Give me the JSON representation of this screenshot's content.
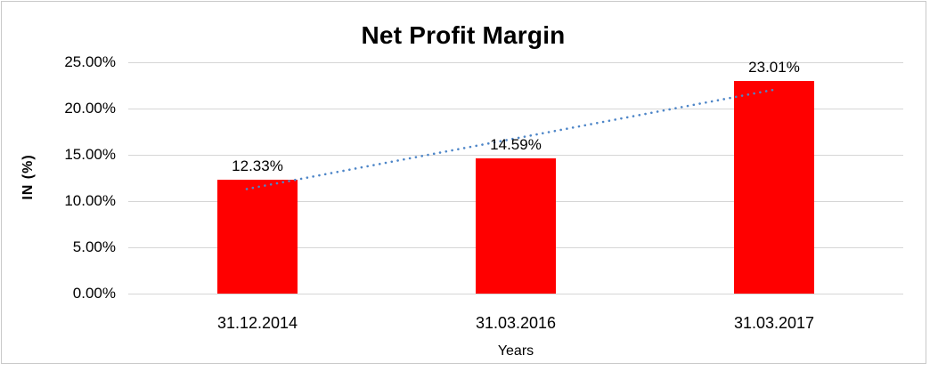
{
  "chart_data": {
    "type": "bar",
    "title": "Net Profit Margin",
    "categories": [
      "31.12.2014",
      "31.03.2016",
      "31.03.2017"
    ],
    "values": [
      12.33,
      14.59,
      23.01
    ],
    "data_labels": [
      "12.33%",
      "14.59%",
      "23.01%"
    ],
    "xlabel": "Years",
    "ylabel": "IN (%)",
    "ylim": [
      0,
      25
    ],
    "yticks": [
      {
        "value": 0,
        "label": "0.00%"
      },
      {
        "value": 5,
        "label": "5.00%"
      },
      {
        "value": 10,
        "label": "10.00%"
      },
      {
        "value": 15,
        "label": "15.00%"
      },
      {
        "value": 20,
        "label": "20.00%"
      },
      {
        "value": 25,
        "label": "25.00%"
      }
    ],
    "grid": true,
    "legend": "none",
    "trendline": {
      "type": "linear",
      "style": "dotted",
      "start_value": 11.3,
      "end_value": 22.0
    },
    "colors": {
      "bar": "#FF0000",
      "gridline": "#D6D6D6",
      "axis_line": "#D6D6D6",
      "frame": "#C9C9C9",
      "trendline": "#4E86C8",
      "text": "#000000",
      "background": "#FFFFFF"
    }
  }
}
